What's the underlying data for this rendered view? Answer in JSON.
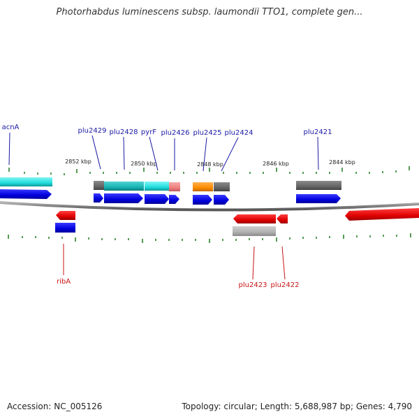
{
  "title": "Photorhabdus luminescens subsp. laumondii TTO1, complete gen...",
  "footer": {
    "accession": "Accession: NC_005126",
    "topology": "Topology: circular; Length: 5,688,987 bp; Genes: 4,790"
  },
  "colors": {
    "forward_cds": "#0000ee",
    "reverse_cds": "#ee0000",
    "label_forward": "#1a1aa6",
    "label_reverse": "#c81414",
    "backbone": "#808080",
    "tick": "#1f7a1f",
    "cyan": "#22dddd",
    "teal": "#19b5b5",
    "dark_gray": "#666666",
    "light_gray": "#b0b0b0",
    "orange": "#ff8c00",
    "salmon": "#f08080"
  },
  "scale": {
    "labels": [
      "2852 kbp",
      "2850 kbp",
      "2848 kbp",
      "2846 kbp",
      "2844 kbp"
    ]
  },
  "genes": {
    "forward_labels": [
      "acnA",
      "plu2429",
      "plu2428",
      "pyrF",
      "plu2426",
      "plu2425",
      "plu2424",
      "plu2421"
    ],
    "reverse_labels": [
      "ribA",
      "plu2423",
      "plu2422"
    ]
  }
}
